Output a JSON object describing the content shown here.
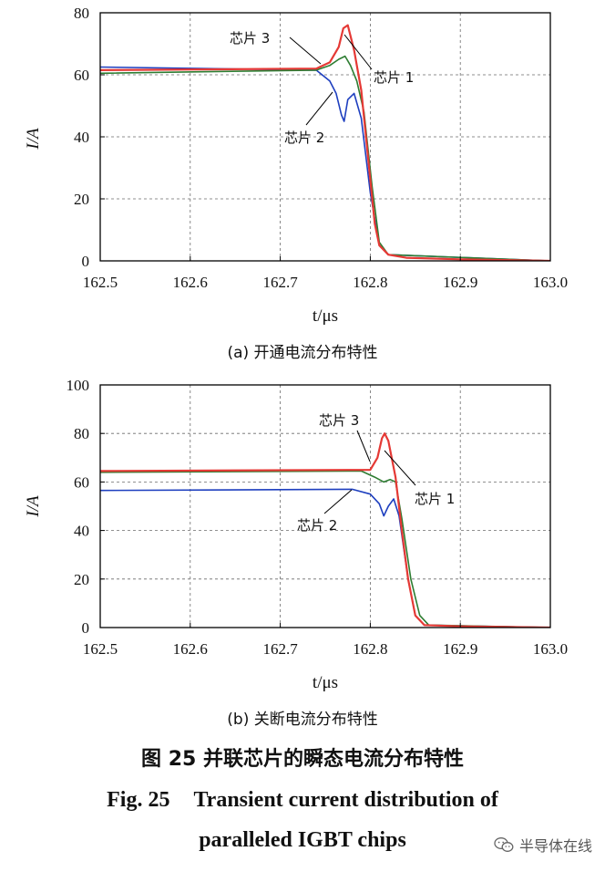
{
  "chart_data": [
    {
      "type": "line",
      "subcaption": "(a)  开通电流分布特性",
      "xlabel": "t/μs",
      "ylabel": "I/A",
      "xlim": [
        162.5,
        163.0
      ],
      "ylim": [
        0,
        80
      ],
      "xticks": [
        "162.5",
        "162.6",
        "162.7",
        "162.8",
        "162.9",
        "163.0"
      ],
      "yticks": [
        "0",
        "20",
        "40",
        "60",
        "80"
      ],
      "grid": true,
      "series": [
        {
          "name": "芯片 1",
          "color": "#e53935",
          "x": [
            162.5,
            162.74,
            162.755,
            162.765,
            162.77,
            162.775,
            162.782,
            162.79,
            162.798,
            162.805,
            162.81,
            162.82,
            162.84,
            162.9,
            163.0
          ],
          "y": [
            61.5,
            62,
            64,
            69,
            75,
            76,
            68,
            55,
            32,
            12,
            5,
            2,
            1,
            0.5,
            0
          ]
        },
        {
          "name": "芯片 2",
          "color": "#1e3fbf",
          "x": [
            162.5,
            162.74,
            162.755,
            162.762,
            162.768,
            162.771,
            162.775,
            162.782,
            162.79,
            162.8,
            162.81,
            162.82,
            163.0
          ],
          "y": [
            62.5,
            61.5,
            58,
            54,
            47,
            45,
            52,
            54,
            46,
            22,
            5,
            2,
            0
          ]
        },
        {
          "name": "芯片 3",
          "color": "#2e7d32",
          "x": [
            162.5,
            162.74,
            162.755,
            162.765,
            162.772,
            162.778,
            162.785,
            162.793,
            162.802,
            162.81,
            162.82,
            163.0
          ],
          "y": [
            60.5,
            61.5,
            63,
            65,
            66,
            63,
            58,
            48,
            24,
            6,
            2,
            0
          ]
        }
      ],
      "annotations": [
        "芯片 3",
        "芯片 1",
        "芯片 2"
      ]
    },
    {
      "type": "line",
      "subcaption": "(b)  关断电流分布特性",
      "xlabel": "t/μs",
      "ylabel": "I/A",
      "xlim": [
        162.5,
        163.0
      ],
      "ylim": [
        0,
        100
      ],
      "xticks": [
        "162.5",
        "162.6",
        "162.7",
        "162.8",
        "162.9",
        "163.0"
      ],
      "yticks": [
        "0",
        "20",
        "40",
        "60",
        "80",
        "100"
      ],
      "grid": true,
      "series": [
        {
          "name": "芯片 1",
          "color": "#e53935",
          "x": [
            162.5,
            162.8,
            162.808,
            162.813,
            162.816,
            162.82,
            162.828,
            162.835,
            162.842,
            162.85,
            162.86,
            162.9,
            163.0
          ],
          "y": [
            64.5,
            65,
            70,
            78,
            80,
            77,
            62,
            40,
            20,
            5,
            1,
            0.5,
            0
          ]
        },
        {
          "name": "芯片 2",
          "color": "#1e3fbf",
          "x": [
            162.5,
            162.78,
            162.8,
            162.81,
            162.815,
            162.82,
            162.826,
            162.832,
            162.842,
            162.85,
            162.86,
            163.0
          ],
          "y": [
            56.5,
            57,
            55,
            51,
            46,
            50,
            53,
            46,
            20,
            5,
            1,
            0
          ]
        },
        {
          "name": "芯片 3",
          "color": "#2e7d32",
          "x": [
            162.5,
            162.79,
            162.805,
            162.815,
            162.822,
            162.828,
            162.835,
            162.845,
            162.855,
            162.865,
            163.0
          ],
          "y": [
            64,
            64.5,
            62,
            60,
            61,
            60,
            45,
            20,
            5,
            1,
            0
          ]
        }
      ],
      "annotations": [
        "芯片 3",
        "芯片 1",
        "芯片 2"
      ]
    }
  ],
  "figure": {
    "caption_cn": "图 25    并联芯片的瞬态电流分布特性",
    "caption_en_label": "Fig. 25",
    "caption_en_line1": "Transient current distribution of",
    "caption_en_line2": "paralleled IGBT chips"
  },
  "watermark": {
    "text": "半导体在线",
    "icon": "wechat-icon"
  }
}
